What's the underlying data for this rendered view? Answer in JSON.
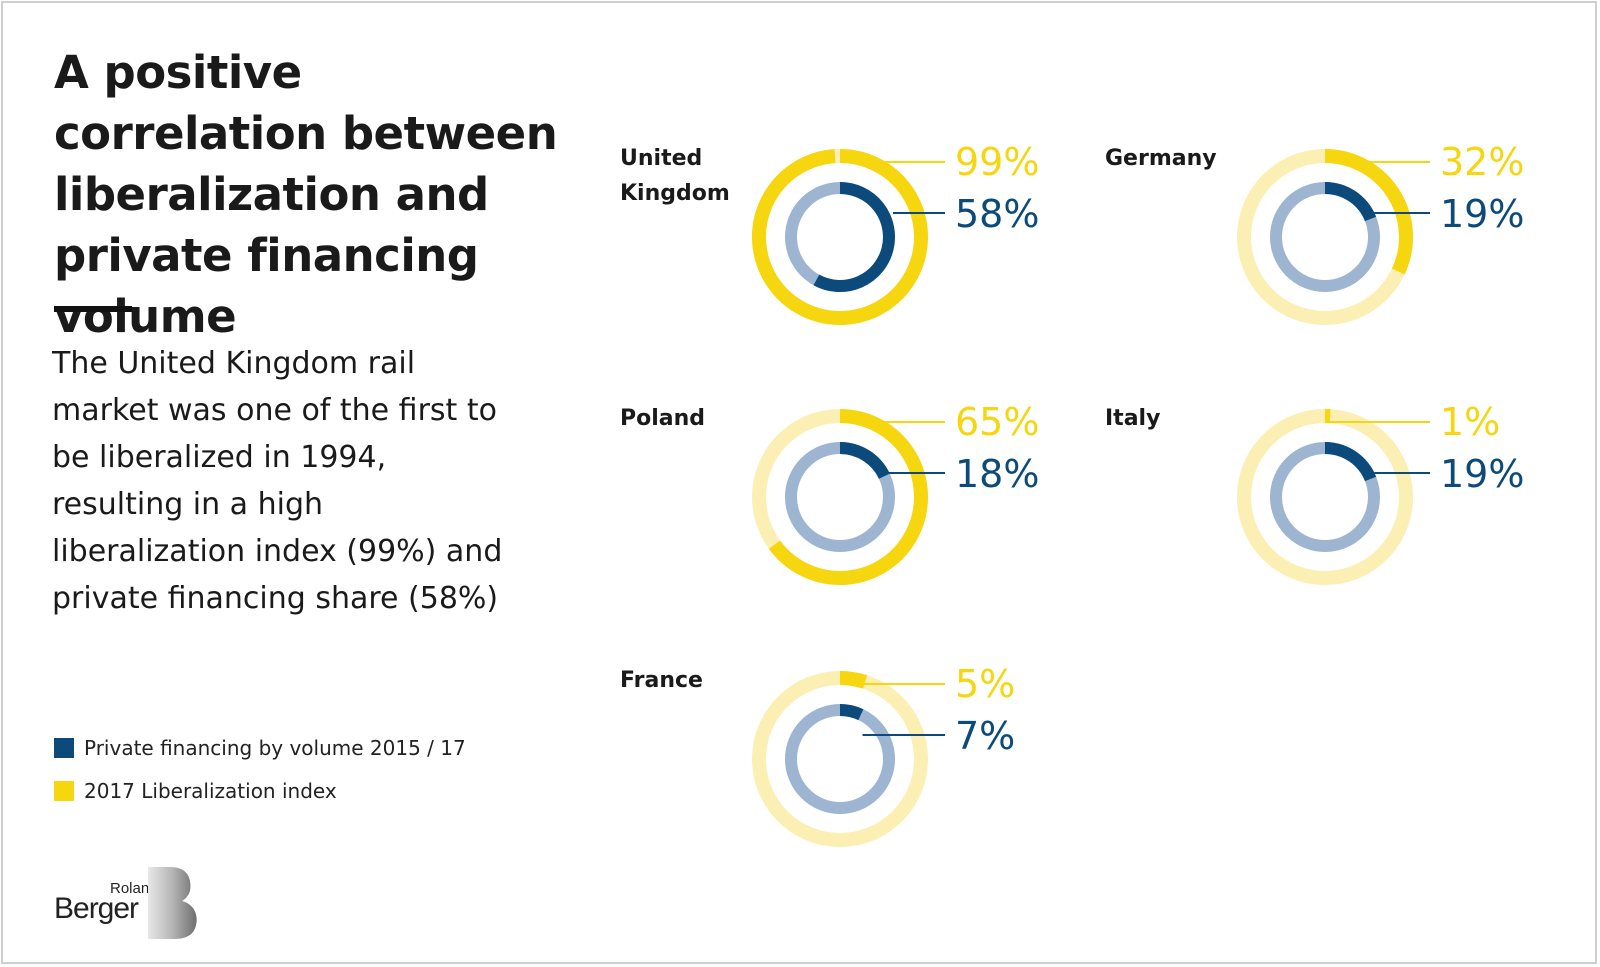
{
  "title": "A positive correlation between liberalization and private financing volume",
  "subtitle": "The United Kingdom rail market was one of the first to be liberalized in 1994, resulting in a high liberalization index (99%) and private financing share (58%)",
  "legend": [
    {
      "label": "Private financing by volume 2015 / 17",
      "color": "#0b4a7a"
    },
    {
      "label": "2017 Liberalization index",
      "color": "#f5d60f"
    }
  ],
  "logo": {
    "top": "Roland",
    "bottom": "Berger"
  },
  "colors": {
    "liberalization": "#f5d60f",
    "liberalization_bg": "#fbefb3",
    "financing": "#0b4a7a",
    "financing_bg": "#9db5d1"
  },
  "chart_data": {
    "type": "donut",
    "series_names": [
      "2017 Liberalization index",
      "Private financing by volume 2015 / 17"
    ],
    "countries": [
      {
        "name": "United Kingdom",
        "name_lines": [
          "United",
          "Kingdom"
        ],
        "liberalization": 99,
        "financing": 58,
        "liberalization_label": "99%",
        "financing_label": "58%"
      },
      {
        "name": "Germany",
        "name_lines": [
          "Germany"
        ],
        "liberalization": 32,
        "financing": 19,
        "liberalization_label": "32%",
        "financing_label": "19%"
      },
      {
        "name": "Poland",
        "name_lines": [
          "Poland"
        ],
        "liberalization": 65,
        "financing": 18,
        "liberalization_label": "65%",
        "financing_label": "18%"
      },
      {
        "name": "Italy",
        "name_lines": [
          "Italy"
        ],
        "liberalization": 1,
        "financing": 19,
        "liberalization_label": "1%",
        "financing_label": "19%"
      },
      {
        "name": "France",
        "name_lines": [
          "France"
        ],
        "liberalization": 5,
        "financing": 7,
        "liberalization_label": "5%",
        "financing_label": "7%"
      }
    ]
  }
}
